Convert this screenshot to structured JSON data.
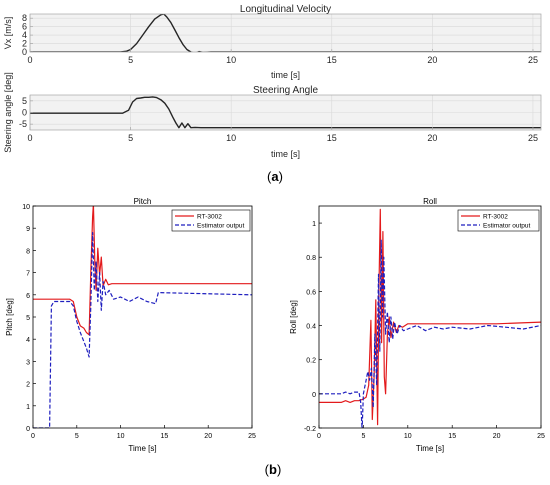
{
  "panel_labels": {
    "a": "(a)",
    "b": "(b)",
    "b_open": "(",
    "b_letter": "b",
    "b_close": ")"
  },
  "chart_data": [
    {
      "type": "line",
      "title": "Longitudinal Velocity",
      "xlabel": "time [s]",
      "ylabel": "Vx [m/s]",
      "xlim": [
        0,
        25.4
      ],
      "ylim": [
        0,
        9
      ],
      "xticks": [
        0,
        5,
        10,
        15,
        20,
        25
      ],
      "yticks": [
        0,
        2,
        4,
        6,
        8
      ],
      "grid": true,
      "legend": "none",
      "colors": {
        "axes_bg": "#f2f2f2",
        "grid": "#d9d9d9",
        "line": "#262626",
        "frame": "#a6a6a6",
        "text": "#262626"
      },
      "series": [
        {
          "x": [
            0,
            4.5,
            4.8,
            5.0,
            5.3,
            5.6,
            5.9,
            6.2,
            6.5,
            6.65,
            6.8,
            7.0,
            7.2,
            7.4,
            7.6,
            7.8,
            8.0,
            8.2,
            8.4,
            8.6,
            9.0,
            25.4
          ],
          "y": [
            0,
            0,
            0.2,
            0.6,
            2.0,
            4.0,
            6.0,
            7.8,
            8.8,
            9.0,
            8.3,
            7.0,
            5.2,
            3.4,
            1.8,
            0.6,
            0.0,
            -0.3,
            0.1,
            -0.1,
            0,
            0
          ]
        }
      ]
    },
    {
      "type": "line",
      "title": "Steering Angle",
      "xlabel": "time [s]",
      "ylabel": "Steering angle [deg]",
      "xlim": [
        0,
        25.4
      ],
      "ylim": [
        -7.5,
        7.5
      ],
      "xticks": [
        0,
        5,
        10,
        15,
        20,
        25
      ],
      "yticks": [
        -5,
        0,
        5
      ],
      "grid": true,
      "legend": "none",
      "colors": {
        "axes_bg": "#f2f2f2",
        "grid": "#d9d9d9",
        "line": "#262626",
        "frame": "#a6a6a6",
        "text": "#262626"
      },
      "series": [
        {
          "x": [
            0,
            4.4,
            4.6,
            4.9,
            5.1,
            5.3,
            5.5,
            5.7,
            5.9,
            6.1,
            6.3,
            6.5,
            6.7,
            6.9,
            7.1,
            7.25,
            7.4,
            7.55,
            7.7,
            7.85,
            8.0,
            8.2,
            8.5,
            25.4
          ],
          "y": [
            -0.3,
            -0.3,
            -0.3,
            1.0,
            4.5,
            6.0,
            6.2,
            6.5,
            6.5,
            6.7,
            6.4,
            5.5,
            4.0,
            1.5,
            -2.0,
            -4.5,
            -6.5,
            -4.5,
            -6.5,
            -4.8,
            -6.5,
            -6.4,
            -6.5,
            -6.5
          ]
        }
      ]
    },
    {
      "type": "line",
      "title": "Pitch",
      "xlabel": "Time [s]",
      "ylabel": "Pitch [deg]",
      "xlim": [
        0,
        25
      ],
      "ylim": [
        0,
        10
      ],
      "xticks": [
        0,
        5,
        10,
        15,
        20,
        25
      ],
      "yticks": [
        0,
        1,
        2,
        3,
        4,
        5,
        6,
        7,
        8,
        9,
        10
      ],
      "grid": false,
      "legend": "top-right",
      "colors": {
        "frame": "#000000",
        "rt": "#e31a1c",
        "est": "#1f1fbf",
        "text": "#000000"
      },
      "series": [
        {
          "name": "RT-3002",
          "x": [
            0,
            4.2,
            4.6,
            5.0,
            5.4,
            5.8,
            6.1,
            6.4,
            6.6,
            6.8,
            6.9,
            7.05,
            7.2,
            7.4,
            7.6,
            7.8,
            8.0,
            8.3,
            8.6,
            9.0,
            10,
            25
          ],
          "y": [
            5.8,
            5.8,
            5.7,
            5.0,
            4.6,
            4.5,
            4.3,
            4.2,
            7.0,
            9.5,
            10.1,
            7.5,
            6.2,
            8.1,
            6.9,
            7.7,
            6.4,
            6.7,
            6.45,
            6.5,
            6.5,
            6.5
          ]
        },
        {
          "name": "Estimator output",
          "x": [
            0,
            1.9,
            2.1,
            2.4,
            4.2,
            4.6,
            5.0,
            5.4,
            5.8,
            6.1,
            6.4,
            6.6,
            6.8,
            7.0,
            7.2,
            7.4,
            7.6,
            7.8,
            8.0,
            8.3,
            8.7,
            9.2,
            10,
            11,
            12,
            13,
            14,
            14.3,
            25
          ],
          "y": [
            0,
            0,
            5.5,
            5.7,
            5.7,
            5.5,
            4.8,
            4.3,
            3.9,
            3.6,
            3.2,
            5.5,
            8.8,
            6.2,
            7.5,
            5.7,
            7.0,
            5.3,
            6.6,
            6.0,
            6.2,
            5.8,
            5.9,
            5.7,
            5.9,
            5.7,
            5.6,
            6.1,
            6.0
          ]
        }
      ]
    },
    {
      "type": "line",
      "title": "Roll",
      "xlabel": "Time [s]",
      "ylabel": "Roll [deg]",
      "xlim": [
        0,
        25
      ],
      "ylim": [
        -0.2,
        1.1
      ],
      "xticks": [
        0,
        5,
        10,
        15,
        20,
        25
      ],
      "yticks": [
        -0.2,
        0,
        0.2,
        0.4,
        0.6,
        0.8,
        1
      ],
      "grid": false,
      "legend": "top-right",
      "colors": {
        "frame": "#000000",
        "rt": "#e31a1c",
        "est": "#1f1fbf",
        "text": "#000000"
      },
      "series": [
        {
          "name": "RT-3002",
          "x": [
            0,
            2.5,
            3.0,
            3.5,
            4.0,
            4.5,
            5.0,
            5.3,
            5.6,
            5.85,
            6.0,
            6.2,
            6.4,
            6.6,
            6.75,
            6.9,
            7.05,
            7.2,
            7.35,
            7.5,
            7.7,
            7.9,
            8.1,
            8.4,
            8.7,
            9.0,
            9.4,
            10,
            12,
            15,
            20,
            25
          ],
          "y": [
            -0.05,
            -0.05,
            -0.04,
            -0.05,
            -0.04,
            -0.04,
            -0.03,
            -0.02,
            0.05,
            0.43,
            -0.15,
            0.1,
            0.55,
            -0.18,
            0.6,
            1.08,
            0.3,
            0.95,
            0.1,
            0.0,
            0.35,
            0.45,
            0.33,
            0.42,
            0.36,
            0.4,
            0.39,
            0.41,
            0.41,
            0.41,
            0.41,
            0.42
          ]
        },
        {
          "name": "Estimator output",
          "x": [
            0,
            2.5,
            3.0,
            3.5,
            4.0,
            4.5,
            4.7,
            4.85,
            5.0,
            5.3,
            5.5,
            5.7,
            5.9,
            6.1,
            6.3,
            6.5,
            6.7,
            6.85,
            7.0,
            7.15,
            7.3,
            7.5,
            7.7,
            7.9,
            8.1,
            8.3,
            8.5,
            8.8,
            9.1,
            9.5,
            10,
            11,
            12,
            13,
            14,
            15,
            17,
            19,
            21,
            23,
            25
          ],
          "y": [
            0,
            0,
            0.01,
            0,
            0.01,
            0.01,
            -0.05,
            -0.21,
            0.0,
            0.08,
            0.13,
            0.08,
            0.15,
            -0.08,
            0.35,
            0.05,
            0.7,
            0.25,
            0.9,
            0.45,
            0.8,
            0.35,
            0.48,
            0.3,
            0.45,
            0.32,
            0.42,
            0.35,
            0.4,
            0.37,
            0.38,
            0.4,
            0.37,
            0.39,
            0.38,
            0.39,
            0.38,
            0.4,
            0.39,
            0.38,
            0.4
          ]
        }
      ]
    }
  ]
}
